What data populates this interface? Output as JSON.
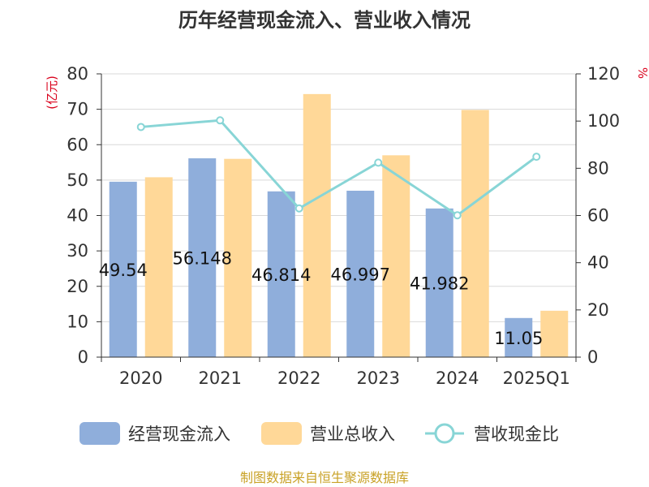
{
  "chart_data": {
    "type": "bar",
    "title": "历年经营现金流入、营业收入情况",
    "categories": [
      "2020",
      "2021",
      "2022",
      "2023",
      "2024",
      "2025Q1"
    ],
    "series": [
      {
        "name": "经营现金流入",
        "type": "bar",
        "axis": "left",
        "color": "#8faedb",
        "values": [
          49.54,
          56.148,
          46.814,
          46.997,
          41.982,
          11.05
        ],
        "labels": [
          "49.54",
          "56.148",
          "46.814",
          "46.997",
          "41.982",
          "11.05"
        ]
      },
      {
        "name": "营业总收入",
        "type": "bar",
        "axis": "left",
        "color": "#ffd898",
        "values": [
          50.8,
          56.0,
          74.3,
          57.0,
          69.8,
          13.1
        ]
      },
      {
        "name": "营收现金比",
        "type": "line",
        "axis": "right",
        "color": "#88d5d6",
        "values": [
          97.5,
          100.3,
          63.0,
          82.4,
          60.1,
          84.9
        ]
      }
    ],
    "y_left": {
      "unit": "(亿元)",
      "ylim": [
        0,
        80
      ],
      "ticks": [
        0,
        10,
        20,
        30,
        40,
        50,
        60,
        70,
        80
      ]
    },
    "y_right": {
      "unit": "%",
      "ylim": [
        0,
        120
      ],
      "ticks": [
        0,
        20,
        40,
        60,
        80,
        100,
        120
      ]
    },
    "grid": true,
    "legend": "bottom"
  },
  "footer": {
    "source": "制图数据来自恒生聚源数据库"
  }
}
